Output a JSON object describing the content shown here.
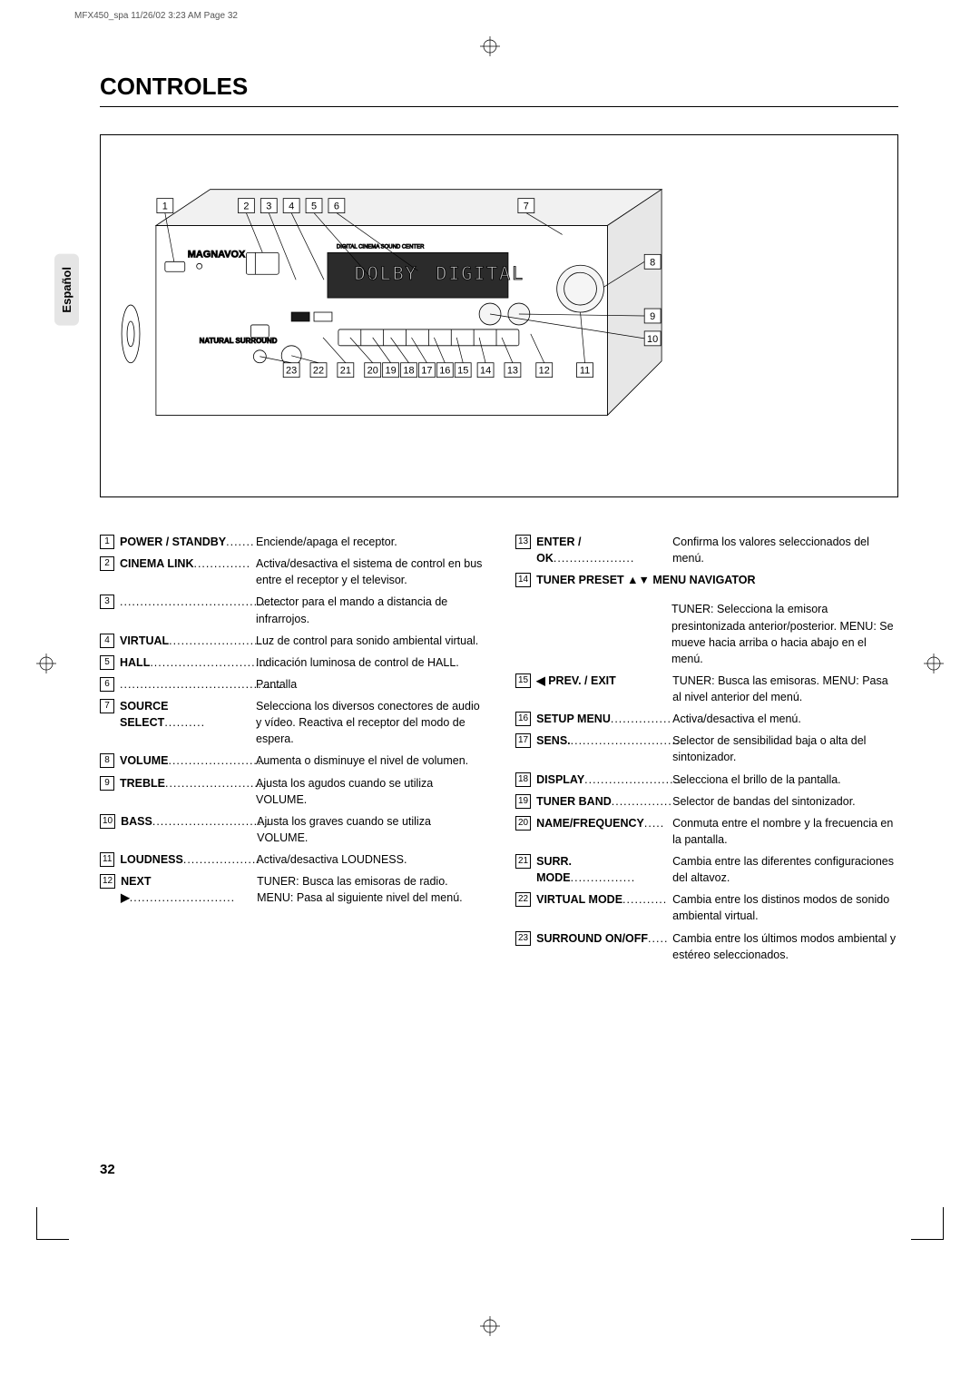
{
  "header_info": "MFX450_spa  11/26/02  3:23 AM  Page 32",
  "section_title": "CONTROLES",
  "side_tab": "Español",
  "page_number": "32",
  "diagram": {
    "brand": "MAGNAVOX",
    "sublabel": "NATURAL SURROUND",
    "center_text_1": "DIGITAL CINEMA SOUND CENTER",
    "center_text_2": "DOLBY",
    "center_text_3": "DIGITAL",
    "top_callouts": [
      "1",
      "2",
      "3",
      "4",
      "5",
      "6",
      "7"
    ],
    "right_callouts": [
      "8",
      "9",
      "10"
    ],
    "bottom_callouts": [
      "23",
      "22",
      "21",
      "20",
      "19",
      "18",
      "17",
      "16",
      "15",
      "14",
      "13",
      "12",
      "11"
    ]
  },
  "left_entries": [
    {
      "num": "1",
      "term": "POWER / STANDBY",
      "dots": ".......",
      "desc": "Enciende/apaga el receptor."
    },
    {
      "num": "2",
      "term": "CINEMA LINK",
      "dots": "..............",
      "desc": "Activa/desactiva el sistema de control en bus entre el receptor y el televisor."
    },
    {
      "num": "3",
      "term": "",
      "dots": "........................................",
      "desc": "Detector para el mando a distancia de infrarrojos."
    },
    {
      "num": "4",
      "term": "VIRTUAL",
      "dots": ".......................",
      "desc": "Luz de control para sonido ambiental virtual."
    },
    {
      "num": "5",
      "term": "HALL",
      "dots": ".............................",
      "desc": "Indicación luminosa de control de HALL."
    },
    {
      "num": "6",
      "term": "",
      "dots": "........................................",
      "desc": "Pantalla"
    },
    {
      "num": "7",
      "term": "SOURCE SELECT",
      "dots": "..........",
      "desc": "Selecciona los diversos conectores de audio y vídeo. Reactiva el receptor del modo de espera."
    },
    {
      "num": "8",
      "term": "VOLUME",
      "dots": "........................",
      "desc": "Aumenta o disminuye el nivel de volumen."
    },
    {
      "num": "9",
      "term": "TREBLE",
      "dots": "..........................",
      "desc": "Ajusta los agudos cuando se utiliza VOLUME."
    },
    {
      "num": "10",
      "term": "BASS",
      "dots": ".............................",
      "desc": "Ajusta los graves cuando se utiliza VOLUME."
    },
    {
      "num": "11",
      "term": "LOUDNESS",
      "dots": "...................",
      "desc": "Activa/desactiva LOUDNESS."
    },
    {
      "num": "12",
      "term": "NEXT ▶",
      "dots": "..........................",
      "desc": "TUNER: Busca las emisoras de radio.\nMENU: Pasa al siguiente nivel del menú."
    }
  ],
  "right_entries": [
    {
      "num": "13",
      "term": "ENTER / OK",
      "dots": "....................",
      "desc": "Confirma los valores seleccionados del menú."
    },
    {
      "num": "14",
      "term": "TUNER PRESET ▲▼ MENU NAVIGATOR",
      "header_only": true
    },
    {
      "num": "",
      "term": "",
      "dots": "",
      "desc": "TUNER: Selecciona la emisora presintonizada anterior/posterior. MENU: Se mueve hacia arriba o hacia abajo en el menú.",
      "indent": true
    },
    {
      "num": "15",
      "term": "◀ PREV. / EXIT",
      "desc": "TUNER: Busca las emisoras. MENU: Pasa al nivel anterior del menú.",
      "nodots": true
    },
    {
      "num": "16",
      "term": "SETUP MENU",
      "dots": "...............",
      "desc": "Activa/desactiva el menú."
    },
    {
      "num": "17",
      "term": "SENS.",
      "dots": "............................",
      "desc": "Selector de sensibilidad baja o alta del sintonizador."
    },
    {
      "num": "18",
      "term": "DISPLAY",
      "dots": ".........................",
      "desc": "Selecciona el brillo de la pantalla."
    },
    {
      "num": "19",
      "term": "TUNER BAND",
      "dots": "...............",
      "desc": "Selector de bandas del sintonizador."
    },
    {
      "num": "20",
      "term": "NAME/FREQUENCY",
      "dots": ".....",
      "desc": "Conmuta entre el nombre y la frecuencia en la pantalla."
    },
    {
      "num": "21",
      "term": "SURR. MODE",
      "dots": "................",
      "desc": "Cambia entre las diferentes configuraciones del altavoz."
    },
    {
      "num": "22",
      "term": "VIRTUAL MODE",
      "dots": "...........",
      "desc": "Cambia entre los distinos modos de sonido ambiental virtual."
    },
    {
      "num": "23",
      "term": "SURROUND ON/OFF",
      "dots": ".....",
      "desc": "Cambia entre los últimos modos ambiental y estéreo seleccionados."
    }
  ]
}
